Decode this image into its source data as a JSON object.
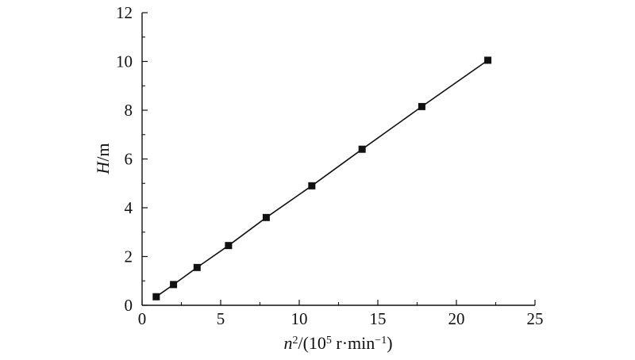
{
  "chart_data": {
    "type": "line",
    "xlabel": "n²/(10⁵ r·min⁻¹)",
    "ylabel": "H/m",
    "xlim": [
      0,
      25
    ],
    "ylim": [
      0,
      12
    ],
    "xticks": [
      0,
      5,
      10,
      15,
      20,
      25
    ],
    "yticks": [
      0,
      2,
      4,
      6,
      8,
      10,
      12
    ],
    "grid": false,
    "series": [
      {
        "x": [
          0.9,
          2.0,
          3.5,
          5.5,
          7.9,
          10.8,
          14.0,
          17.8,
          22.0
        ],
        "y": [
          0.35,
          0.85,
          1.55,
          2.45,
          3.6,
          4.9,
          6.4,
          8.15,
          10.05
        ],
        "color": "#111111",
        "marker": "square"
      }
    ]
  }
}
